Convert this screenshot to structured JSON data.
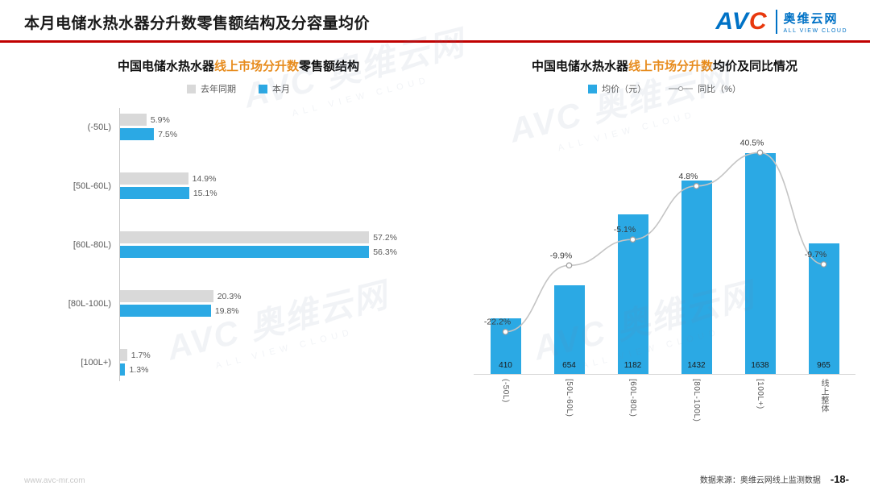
{
  "header": {
    "title": "本月电储水热水器分升数零售额结构及分容量均价",
    "logo": {
      "brand_blue": "AV",
      "brand_red": "C",
      "name": "奥维云网",
      "tagline": "ALL VIEW CLOUD"
    }
  },
  "watermark": {
    "brand": "AVC",
    "name": "奥维云网",
    "tagline": "ALL VIEW CLOUD"
  },
  "colors": {
    "accent_red": "#C00000",
    "brand_blue": "#0072C6",
    "bar_blue": "#2BA9E4",
    "bar_gray": "#D9D9D9",
    "highlight_orange": "#E78C1E",
    "line_gray": "#C4C4C4"
  },
  "chart_data": [
    {
      "type": "bar",
      "orientation": "horizontal",
      "title_prefix": "中国电储水热水器",
      "title_highlight": "线上市场分升数",
      "title_suffix": "零售额结构",
      "categories": [
        "(-50L)",
        "[50L-60L)",
        "[60L-80L)",
        "[80L-100L)",
        "[100L+)"
      ],
      "series": [
        {
          "name": "去年同期",
          "color": "#D9D9D9",
          "values": [
            5.9,
            14.9,
            57.2,
            20.3,
            1.7
          ]
        },
        {
          "name": "本月",
          "color": "#2BA9E4",
          "values": [
            7.5,
            15.1,
            56.3,
            19.8,
            1.3
          ]
        }
      ],
      "unit": "%",
      "xlim": [
        0,
        60
      ],
      "grid": false,
      "legend_position": "top"
    },
    {
      "type": "bar+line",
      "title_prefix": "中国电储水热水器",
      "title_highlight": "线上市场分升数",
      "title_suffix": "均价及同比情况",
      "categories": [
        "(-50L)",
        "[50L-60L)",
        "[60L-80L)",
        "[80L-100L)",
        "[100L+)",
        "线上整体"
      ],
      "bar_series": {
        "name": "均价（元）",
        "color": "#2BA9E4",
        "values": [
          410,
          654,
          1182,
          1432,
          1638,
          965
        ],
        "ylim": [
          0,
          2000
        ]
      },
      "line_series": {
        "name": "同比（%）",
        "color": "#C4C4C4",
        "values": [
          -22.2,
          -9.9,
          -5.1,
          4.8,
          40.5,
          -9.7
        ],
        "unit": "%",
        "ylim": [
          -30,
          20
        ]
      },
      "grid": false,
      "legend_position": "top"
    }
  ],
  "footer": {
    "website": "www.avc-mr.com",
    "source": "数据来源：奥维云网线上监测数据",
    "page": "-18-"
  }
}
